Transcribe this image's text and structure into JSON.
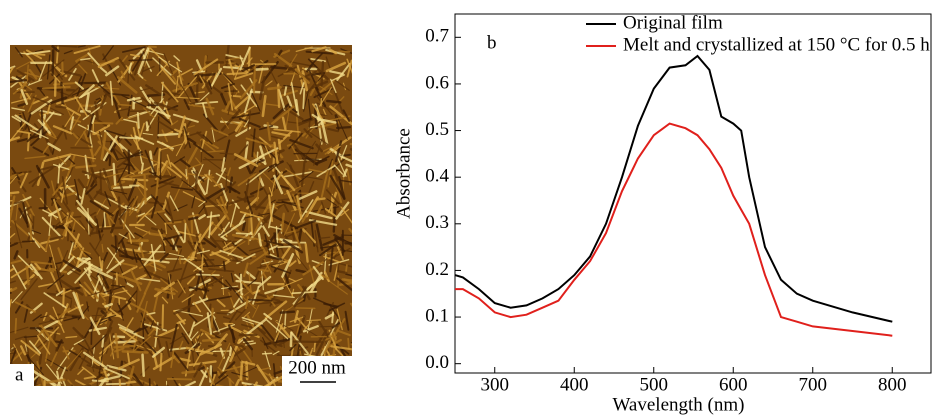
{
  "image_panel": {
    "label": "a",
    "scale_bar": "200 nm"
  },
  "chart_data": {
    "type": "line",
    "annotation": "b",
    "x_label": "Wavelength (nm)",
    "y_label": "Absorbance",
    "x": [
      250,
      260,
      280,
      300,
      320,
      340,
      360,
      380,
      400,
      420,
      440,
      460,
      480,
      500,
      520,
      540,
      555,
      570,
      585,
      600,
      610,
      620,
      640,
      660,
      680,
      700,
      750,
      800
    ],
    "series": [
      {
        "name": "Original film",
        "color": "#000000",
        "values": [
          0.19,
          0.185,
          0.16,
          0.13,
          0.12,
          0.125,
          0.14,
          0.16,
          0.19,
          0.23,
          0.3,
          0.4,
          0.51,
          0.59,
          0.635,
          0.64,
          0.66,
          0.63,
          0.53,
          0.515,
          0.5,
          0.4,
          0.25,
          0.18,
          0.15,
          0.135,
          0.11,
          0.09
        ]
      },
      {
        "name": "Melt and crystallized at 150 °C for 0.5 h",
        "color": "#e0201c",
        "values": [
          0.16,
          0.16,
          0.14,
          0.11,
          0.1,
          0.105,
          0.12,
          0.135,
          0.18,
          0.22,
          0.28,
          0.37,
          0.44,
          0.49,
          0.515,
          0.505,
          0.49,
          0.46,
          0.42,
          0.36,
          0.33,
          0.3,
          0.19,
          0.1,
          0.09,
          0.08,
          0.07,
          0.06
        ]
      }
    ],
    "xlim": [
      250,
      850
    ],
    "xticks": [
      300,
      400,
      500,
      600,
      700,
      800
    ],
    "ylim": [
      -0.02,
      0.75
    ],
    "yticks": [
      {
        "value": 0,
        "label": "0.0"
      },
      0.1,
      0.2,
      0.3,
      0.4,
      0.5,
      0.6,
      0.7
    ]
  }
}
